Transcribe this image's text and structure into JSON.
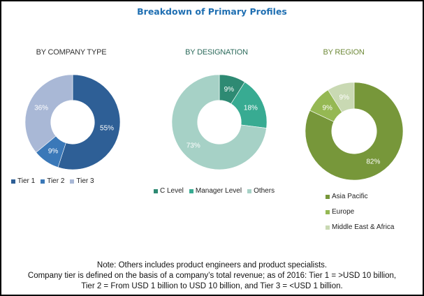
{
  "title": "Breakdown of Primary Profiles",
  "chart_data": [
    {
      "type": "pie",
      "donut": true,
      "title": "BY COMPANY TYPE",
      "categories": [
        "Tier 1",
        "Tier 2",
        "Tier 3"
      ],
      "values": [
        55,
        9,
        36
      ],
      "labels": [
        "55%",
        "9%",
        "36%"
      ],
      "colors": [
        "#2e5f96",
        "#3a78b8",
        "#a9b8d6"
      ],
      "legend": "bottom"
    },
    {
      "type": "pie",
      "donut": true,
      "title": "BY DESIGNATION",
      "categories": [
        "C Level",
        "Manager Level",
        "Others"
      ],
      "values": [
        9,
        18,
        73
      ],
      "labels": [
        "9%",
        "18%",
        "73%"
      ],
      "colors": [
        "#2e8a73",
        "#38ab92",
        "#a6d1c6"
      ],
      "legend": "bottom"
    },
    {
      "type": "pie",
      "donut": true,
      "title": "BY REGION",
      "categories": [
        "Asia Pacific",
        "Europe",
        "Middle East & Africa"
      ],
      "values": [
        82,
        9,
        9
      ],
      "labels": [
        "82%",
        "9%",
        "9%"
      ],
      "colors": [
        "#77973a",
        "#95b853",
        "#c9d9b3"
      ],
      "legend": "bottom"
    }
  ],
  "note": {
    "line1": "Note: Others includes product engineers and product specialists.",
    "line2": "Company tier is defined on the basis of a company’s total revenue; as of 2016: Tier 1 = >USD 10 billion,",
    "line3": "Tier 2 = From USD 1 billion to USD 10 billion, and Tier 3 = <USD 1 billion."
  },
  "subtitle_colors": [
    "#333333",
    "#2d6b5c",
    "#6f8a3a"
  ]
}
